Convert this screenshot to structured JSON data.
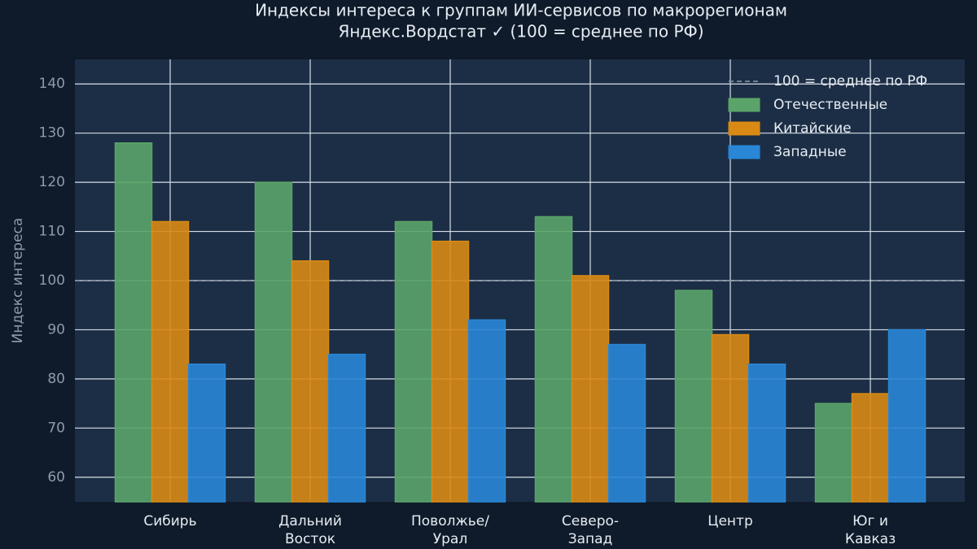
{
  "chart_data": {
    "type": "bar",
    "title": "Индексы интереса к группам ИИ-сервисов по макрорегионам",
    "subtitle": "Яндекс.Вордстат ✓  (100 = среднее по РФ)",
    "y_label": "Индекс интереса",
    "categories": [
      "Сибирь",
      "Дальний\nВосток",
      "Поволжье/\nУрал",
      "Северо-\nЗапад",
      "Центр",
      "Юг и\nКавказ"
    ],
    "series": [
      {
        "name": "Отечественные",
        "color": "#5aa469",
        "values": [
          128,
          120,
          112,
          113,
          98,
          75
        ]
      },
      {
        "name": "Китайские",
        "color": "#d98a14",
        "values": [
          112,
          104,
          108,
          101,
          89,
          77
        ]
      },
      {
        "name": "Западные",
        "color": "#2a86d6",
        "values": [
          83,
          85,
          92,
          87,
          83,
          90
        ]
      }
    ],
    "reference_line": {
      "value": 100,
      "label": "100 = среднее по РФ"
    },
    "ylim": [
      55,
      145
    ],
    "yticks": [
      60,
      70,
      80,
      90,
      100,
      110,
      120,
      130,
      140
    ],
    "grid": true,
    "legend": "upper right"
  }
}
